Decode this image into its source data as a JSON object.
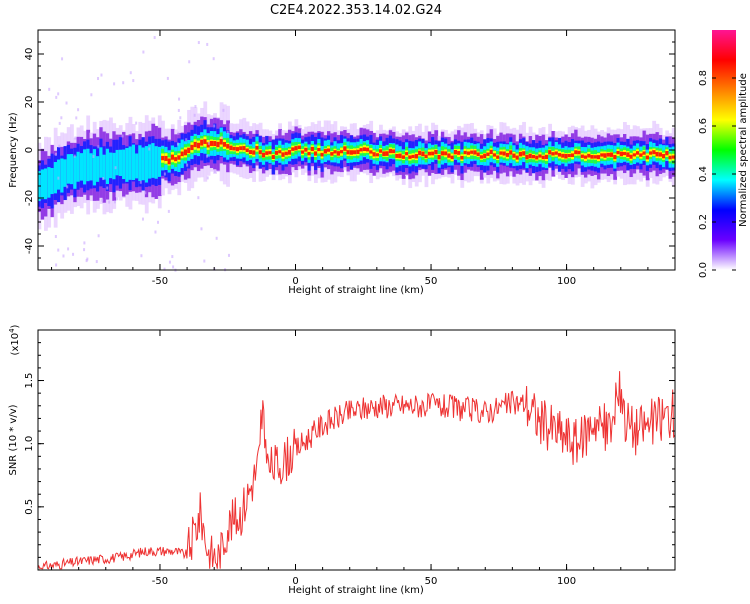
{
  "figure": {
    "title": "C2E4.2022.353.14.02.G24"
  },
  "chart_data": [
    {
      "type": "heatmap",
      "xlabel": "Height of straight line (km)",
      "ylabel": "Frequency (Hz)",
      "xlim": [
        -95,
        140
      ],
      "ylim": [
        -50,
        50
      ],
      "xticks": [
        -50,
        0,
        50,
        100
      ],
      "yticks": [
        -40,
        -20,
        0,
        20,
        40
      ],
      "colorbar": {
        "label": "Normalized spectral amplitude",
        "ticks": [
          "0.0",
          "0.2",
          "0.4",
          "0.6",
          "0.8"
        ],
        "range": [
          0,
          1
        ],
        "colors": [
          "#ffffff",
          "#6a00ff",
          "#0000ff",
          "#00ffff",
          "#00ff00",
          "#ffff00",
          "#ff8000",
          "#ff0000",
          "#ff1493"
        ]
      },
      "ridge": {
        "x": [
          -95,
          -85,
          -75,
          -65,
          -55,
          -45,
          -35,
          -25,
          -15,
          -10,
          -5,
          0,
          10,
          20,
          40,
          60,
          80,
          100,
          120,
          140
        ],
        "y": [
          -15,
          -9,
          -7,
          -5,
          -6,
          -3,
          3,
          2,
          0,
          -2,
          -1,
          0,
          -1,
          0,
          -2,
          -2,
          -2,
          -2,
          -2,
          -2
        ]
      }
    },
    {
      "type": "line",
      "xlabel": "Height of straight line (km)",
      "ylabel": "SNR (10 * v/v)",
      "y_multiplier_label": "(x10",
      "y_multiplier_exp": "4",
      "y_multiplier_close": ")",
      "xlim": [
        -95,
        140
      ],
      "ylim": [
        0,
        1.9
      ],
      "xticks": [
        -50,
        0,
        50,
        100
      ],
      "yticks": [
        "0.5",
        "1.0",
        "1.5"
      ],
      "series": [
        {
          "color": "#ee3333",
          "x": [
            -95,
            -85,
            -75,
            -65,
            -55,
            -45,
            -40,
            -35,
            -32,
            -28,
            -25,
            -20,
            -15,
            -12,
            -10,
            -5,
            0,
            10,
            20,
            30,
            40,
            50,
            60,
            70,
            80,
            85,
            90,
            95,
            100,
            105,
            110,
            115,
            120,
            125,
            130,
            135,
            140
          ],
          "y": [
            0.02,
            0.05,
            0.08,
            0.1,
            0.15,
            0.15,
            0.12,
            0.45,
            0.12,
            0.1,
            0.35,
            0.45,
            0.75,
            1.0,
            0.8,
            0.85,
            0.95,
            1.15,
            1.25,
            1.3,
            1.3,
            1.3,
            1.28,
            1.25,
            1.32,
            1.32,
            1.18,
            1.12,
            1.05,
            1.0,
            1.2,
            1.1,
            1.25,
            1.1,
            1.15,
            1.2,
            1.25
          ]
        }
      ]
    }
  ]
}
